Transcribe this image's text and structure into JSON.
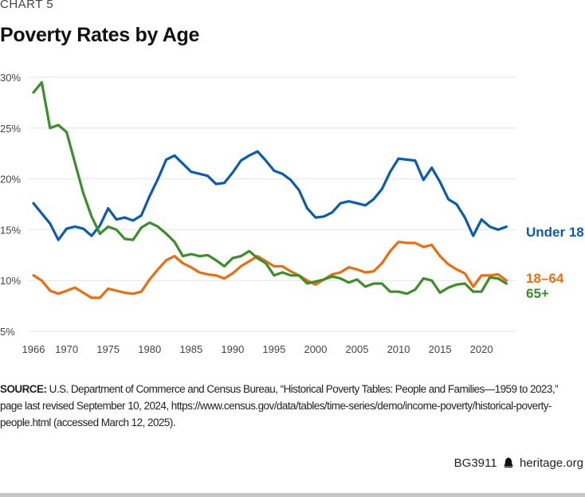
{
  "kicker": "CHART 5",
  "chart_data": {
    "type": "line",
    "title": "Poverty Rates by Age",
    "xlabel": "",
    "ylabel": "",
    "xlim": [
      1966,
      2023
    ],
    "ylim": [
      5,
      30
    ],
    "x_ticks": [
      1966,
      1970,
      1975,
      1980,
      1985,
      1990,
      1995,
      2000,
      2005,
      2010,
      2015,
      2020
    ],
    "y_ticks": [
      "5%",
      "10%",
      "15%",
      "20%",
      "25%",
      "30%"
    ],
    "y_tick_values": [
      5,
      10,
      15,
      20,
      25,
      30
    ],
    "grid": "horizontal",
    "legend": "direct labels at right end of lines",
    "x": [
      1966,
      1967,
      1968,
      1969,
      1970,
      1971,
      1972,
      1973,
      1974,
      1975,
      1976,
      1977,
      1978,
      1979,
      1980,
      1981,
      1982,
      1983,
      1984,
      1985,
      1986,
      1987,
      1988,
      1989,
      1990,
      1991,
      1992,
      1993,
      1994,
      1995,
      1996,
      1997,
      1998,
      1999,
      2000,
      2001,
      2002,
      2003,
      2004,
      2005,
      2006,
      2007,
      2008,
      2009,
      2010,
      2011,
      2012,
      2013,
      2014,
      2015,
      2016,
      2017,
      2018,
      2019,
      2020,
      2021,
      2022,
      2023
    ],
    "series": [
      {
        "name": "Under 18",
        "color": "#0a5cb0",
        "values": [
          17.6,
          16.6,
          15.6,
          14.0,
          15.1,
          15.3,
          15.1,
          14.4,
          15.4,
          17.1,
          16.0,
          16.2,
          15.9,
          16.4,
          18.3,
          20.0,
          21.9,
          22.3,
          21.5,
          20.7,
          20.5,
          20.3,
          19.5,
          19.6,
          20.6,
          21.8,
          22.3,
          22.7,
          21.8,
          20.8,
          20.5,
          19.9,
          18.9,
          17.1,
          16.2,
          16.3,
          16.7,
          17.6,
          17.8,
          17.6,
          17.4,
          18.0,
          19.0,
          20.7,
          22.0,
          21.9,
          21.8,
          19.9,
          21.1,
          19.7,
          18.0,
          17.5,
          16.2,
          14.4,
          16.0,
          15.3,
          15.0,
          15.3
        ]
      },
      {
        "name": "18–64",
        "color": "#ec6c0e",
        "values": [
          10.5,
          10.0,
          9.0,
          8.7,
          9.0,
          9.3,
          8.8,
          8.3,
          8.3,
          9.2,
          9.0,
          8.8,
          8.7,
          8.9,
          10.1,
          11.1,
          12.0,
          12.4,
          11.7,
          11.3,
          10.8,
          10.6,
          10.5,
          10.2,
          10.7,
          11.4,
          11.9,
          12.4,
          11.9,
          11.4,
          11.4,
          10.9,
          10.5,
          10.0,
          9.6,
          10.1,
          10.6,
          10.8,
          11.3,
          11.1,
          10.8,
          10.9,
          11.7,
          12.9,
          13.8,
          13.7,
          13.7,
          13.3,
          13.5,
          12.4,
          11.6,
          11.1,
          10.7,
          9.4,
          10.5,
          10.5,
          10.6,
          10.0
        ]
      },
      {
        "name": "65+",
        "color": "#3a8f2a",
        "values": [
          28.5,
          29.5,
          25.0,
          25.3,
          24.6,
          21.6,
          18.6,
          16.3,
          14.6,
          15.3,
          15.0,
          14.1,
          14.0,
          15.2,
          15.7,
          15.3,
          14.6,
          13.8,
          12.4,
          12.6,
          12.4,
          12.5,
          12.0,
          11.4,
          12.2,
          12.4,
          12.9,
          12.2,
          11.7,
          10.5,
          10.8,
          10.5,
          10.5,
          9.7,
          9.9,
          10.1,
          10.4,
          10.2,
          9.8,
          10.1,
          9.4,
          9.7,
          9.7,
          8.9,
          8.9,
          8.7,
          9.1,
          10.2,
          10.0,
          8.8,
          9.3,
          9.6,
          9.7,
          8.9,
          8.9,
          10.3,
          10.2,
          9.7
        ]
      }
    ]
  },
  "source": {
    "label": "SOURCE:",
    "text": " U.S. Department of Commerce and Census Bureau, “Historical Poverty Tables: People and Families—1959 to 2023,” page last revised September 10, 2024, https://www.census.gov/data/tables/time-series/demo/income-poverty/historical-poverty-people.html (accessed March 12, 2025)."
  },
  "footer": {
    "code": "BG3911",
    "icon": "liberty-bell-icon",
    "site": "heritage.org"
  }
}
